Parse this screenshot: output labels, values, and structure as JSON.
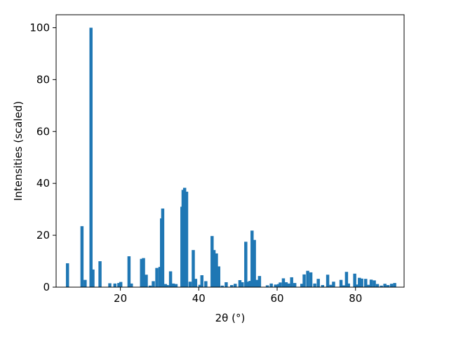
{
  "chart_data": {
    "type": "bar",
    "title": "",
    "xlabel": "2θ (°)",
    "ylabel": "Intensities (scaled)",
    "xlim": [
      3.6,
      92.4
    ],
    "ylim": [
      0,
      105
    ],
    "xticks": [
      20,
      40,
      60,
      80
    ],
    "yticks": [
      0,
      20,
      40,
      60,
      80,
      100
    ],
    "grid": false,
    "bar_width": 0.8,
    "color": "#1f77b4",
    "x": [
      6.5,
      10.2,
      11.0,
      12.5,
      13.0,
      14.8,
      17.3,
      18.6,
      19.6,
      20.1,
      22.2,
      22.8,
      25.4,
      25.9,
      26.6,
      27.6,
      28.4,
      29.3,
      30.1,
      30.5,
      30.8,
      31.5,
      32.0,
      32.8,
      33.5,
      34.2,
      35.7,
      36.0,
      36.4,
      36.9,
      37.8,
      38.6,
      39.2,
      40.3,
      40.8,
      41.8,
      43.4,
      43.9,
      44.5,
      45.1,
      46.0,
      47.0,
      48.4,
      49.3,
      50.5,
      51.1,
      52.0,
      52.6,
      53.1,
      53.6,
      54.2,
      54.8,
      55.5,
      57.5,
      58.5,
      59.6,
      60.4,
      60.8,
      61.6,
      62.3,
      62.9,
      63.7,
      64.5,
      66.3,
      66.9,
      67.8,
      68.6,
      69.6,
      70.5,
      71.6,
      72.9,
      73.7,
      74.4,
      76.3,
      77.0,
      77.7,
      78.2,
      79.8,
      80.4,
      81.0,
      81.6,
      82.6,
      83.4,
      84.0,
      84.8,
      85.6,
      86.6,
      87.5,
      88.3,
      89.2,
      90.0
    ],
    "values": [
      9.2,
      23.5,
      2.8,
      100,
      6.8,
      10.0,
      1.5,
      1.4,
      1.6,
      2.0,
      11.9,
      1.4,
      10.9,
      11.2,
      4.8,
      0.6,
      2.3,
      7.4,
      7.8,
      26.5,
      30.3,
      1.2,
      0.8,
      6.1,
      1.4,
      1.2,
      31.0,
      37.5,
      38.3,
      36.8,
      2.1,
      14.3,
      3.2,
      0.9,
      4.6,
      2.3,
      19.7,
      14.3,
      13.0,
      8.0,
      0.6,
      1.9,
      0.8,
      1.3,
      2.7,
      1.9,
      17.5,
      2.1,
      2.4,
      21.8,
      18.2,
      2.8,
      4.3,
      0.7,
      1.4,
      1.0,
      1.2,
      1.8,
      3.4,
      1.9,
      1.4,
      3.8,
      1.6,
      1.3,
      4.9,
      6.3,
      5.7,
      1.4,
      3.2,
      0.8,
      4.8,
      0.9,
      2.1,
      2.8,
      0.7,
      5.9,
      1.4,
      5.2,
      1.0,
      3.6,
      3.3,
      3.2,
      0.9,
      2.9,
      2.6,
      1.2,
      0.6,
      1.3,
      0.8,
      1.3,
      1.6
    ]
  }
}
